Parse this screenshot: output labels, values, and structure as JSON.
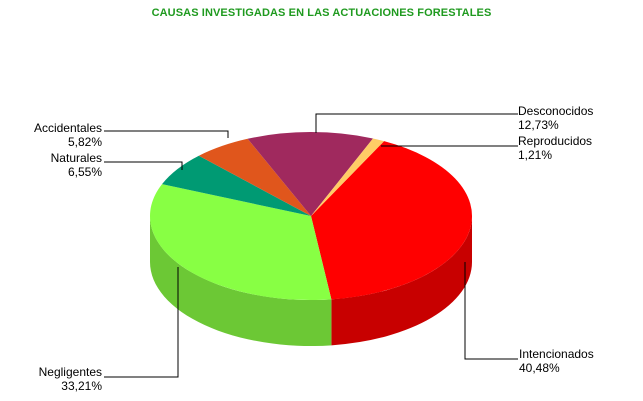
{
  "chart_data": {
    "type": "pie",
    "title": "CAUSAS INVESTIGADAS EN LAS ACTUACIONES FORESTALES",
    "slices": [
      {
        "name": "Intencionados",
        "value": 40.48,
        "value_label": "40,48%",
        "top_color": "#ff0000",
        "side_color": "#c80000"
      },
      {
        "name": "Negligentes",
        "value": 33.21,
        "value_label": "33,21%",
        "top_color": "#88ff44",
        "side_color": "#6cc835"
      },
      {
        "name": "Naturales",
        "value": 6.55,
        "value_label": "6,55%",
        "top_color": "#009a73",
        "side_color": "#007558"
      },
      {
        "name": "Accidentales",
        "value": 5.82,
        "value_label": "5,82%",
        "top_color": "#e0561c",
        "side_color": "#b04416"
      },
      {
        "name": "Desconocidos",
        "value": 12.73,
        "value_label": "12,73%",
        "top_color": "#a0295e",
        "side_color": "#7c1f49"
      },
      {
        "name": "Reproducidos",
        "value": 1.21,
        "value_label": "1,21%",
        "top_color": "#ffcc66",
        "side_color": "#d9a84c"
      }
    ],
    "legend": "none"
  }
}
